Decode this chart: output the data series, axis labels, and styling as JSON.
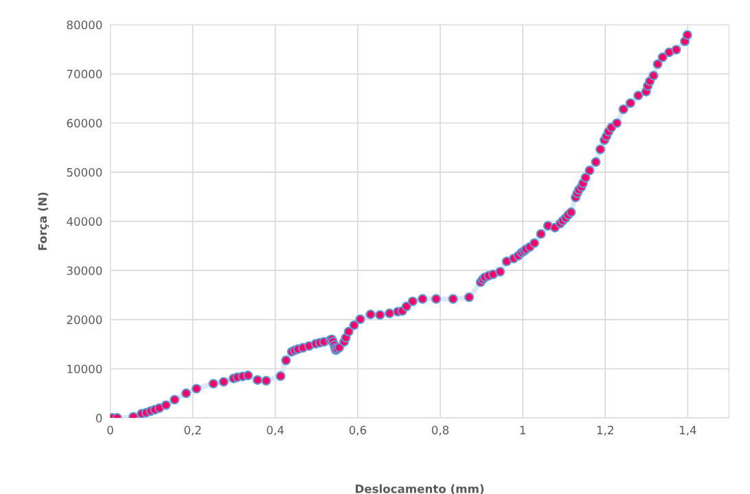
{
  "chart_data": {
    "type": "line",
    "xlabel": "Deslocamento (mm)",
    "ylabel": "Força (N)",
    "x": [
      0.001,
      0.005,
      0.017,
      0.056,
      0.076,
      0.087,
      0.098,
      0.108,
      0.119,
      0.135,
      0.156,
      0.184,
      0.209,
      0.25,
      0.275,
      0.299,
      0.308,
      0.321,
      0.334,
      0.357,
      0.378,
      0.413,
      0.426,
      0.44,
      0.447,
      0.455,
      0.467,
      0.482,
      0.498,
      0.508,
      0.518,
      0.533,
      0.537,
      0.54,
      0.543,
      0.545,
      0.547,
      0.55,
      0.555,
      0.567,
      0.571,
      0.578,
      0.591,
      0.606,
      0.631,
      0.654,
      0.677,
      0.697,
      0.708,
      0.718,
      0.733,
      0.757,
      0.79,
      0.831,
      0.87,
      0.898,
      0.903,
      0.908,
      0.917,
      0.928,
      0.945,
      0.961,
      0.978,
      0.989,
      0.997,
      1.003,
      1.008,
      1.017,
      1.028,
      1.044,
      1.061,
      1.078,
      1.091,
      1.097,
      1.104,
      1.11,
      1.117,
      1.128,
      1.132,
      1.136,
      1.142,
      1.146,
      1.152,
      1.162,
      1.177,
      1.188,
      1.198,
      1.203,
      1.208,
      1.215,
      1.228,
      1.244,
      1.261,
      1.28,
      1.299,
      1.303,
      1.308,
      1.317,
      1.327,
      1.339,
      1.355,
      1.372,
      1.393,
      1.399
    ],
    "series": [
      {
        "color": "#ff0066",
        "values": [
          0,
          0,
          0,
          220,
          840,
          1060,
          1390,
          1670,
          1990,
          2590,
          3710,
          5020,
          5940,
          6970,
          7340,
          8030,
          8270,
          8450,
          8650,
          7710,
          7570,
          8510,
          11720,
          13470,
          13750,
          13990,
          14270,
          14640,
          15100,
          15290,
          15480,
          15840,
          16000,
          15500,
          14800,
          14200,
          13800,
          14000,
          14300,
          15480,
          16320,
          17570,
          18870,
          20080,
          21060,
          20960,
          21280,
          21620,
          21760,
          22680,
          23710,
          24210,
          24210,
          24210,
          24550,
          27620,
          28170,
          28590,
          28910,
          29190,
          29750,
          31840,
          32440,
          33000,
          33610,
          33930,
          34310,
          34770,
          35560,
          37420,
          39090,
          38710,
          39550,
          40110,
          40670,
          41280,
          41840,
          44850,
          45690,
          46390,
          47000,
          47740,
          48860,
          50350,
          52060,
          54620,
          56530,
          57320,
          58240,
          59080,
          59970,
          62800,
          64060,
          65590,
          66390,
          67550,
          68480,
          69640,
          71970,
          73360,
          74380,
          74900,
          76610,
          77910
        ]
      }
    ],
    "xlim": [
      0,
      1.5
    ],
    "xticks": [
      0,
      {
        "value": 0.2,
        "label": "0,2"
      },
      {
        "value": 0.4,
        "label": "0,4"
      },
      {
        "value": 0.6,
        "label": "0,6"
      },
      {
        "value": 0.8,
        "label": "0,8"
      },
      1,
      {
        "value": 1.2,
        "label": "1,2"
      },
      {
        "value": 1.4,
        "label": "1,4"
      }
    ],
    "ylim": [
      0,
      80000
    ],
    "yticks": [
      0,
      10000,
      20000,
      30000,
      40000,
      50000,
      60000,
      70000,
      80000
    ],
    "grid": true,
    "marker": "circle",
    "line_style": "solid",
    "legend": false
  }
}
